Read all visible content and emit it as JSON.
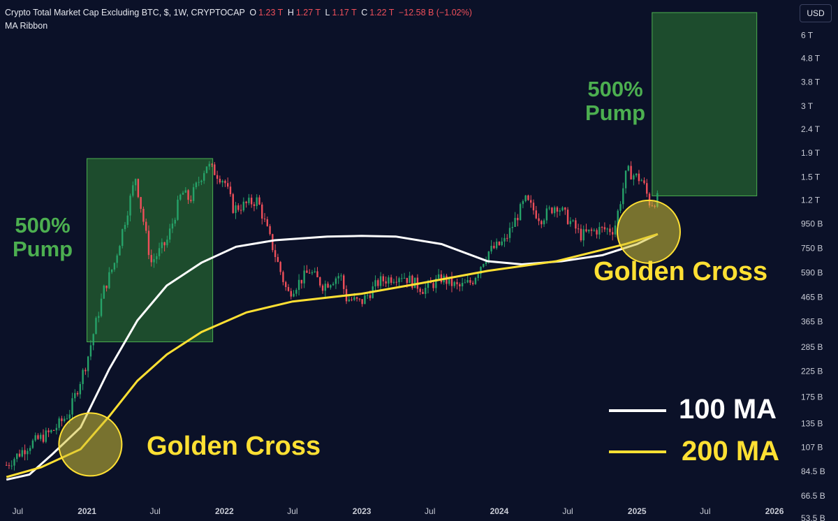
{
  "header": {
    "title": "Crypto Total Market Cap Excluding BTC, $, 1W, CRYPTOCAP",
    "open_label": "O",
    "open_value": "1.23 T",
    "high_label": "H",
    "high_value": "1.27 T",
    "low_label": "L",
    "low_value": "1.17 T",
    "close_label": "C",
    "close_value": "1.22 T",
    "change": "−12.58 B (−1.02%)",
    "indicator": "MA Ribbon"
  },
  "currency_button": "USD",
  "annotations": {
    "pump_left": "500%\nPump",
    "pump_right": "500%\nPump",
    "golden_left": "Golden Cross",
    "golden_right": "Golden Cross"
  },
  "legend": {
    "ma100": "100 MA",
    "ma200": "200 MA"
  },
  "colors": {
    "background": "#0b1128",
    "candle_up": "#26a269",
    "candle_down": "#ef4f5a",
    "ma100": "#ffffff",
    "ma200": "#ffe033",
    "pump_box": "#2e7d32",
    "golden_circle": "#d4c334"
  },
  "chart_data": {
    "type": "line",
    "title": "Crypto Total Market Cap Excluding BTC, $, 1W, CRYPTOCAP",
    "y_scale": "log",
    "y_ticks": [
      "6 T",
      "4.8 T",
      "3.8 T",
      "3 T",
      "2.4 T",
      "1.9 T",
      "1.5 T",
      "1.2 T",
      "950 B",
      "750 B",
      "590 B",
      "465 B",
      "365 B",
      "285 B",
      "225 B",
      "175 B",
      "135 B",
      "107 B",
      "84.5 B",
      "66.5 B",
      "53.5 B"
    ],
    "x_ticks": [
      "Jul",
      "2021",
      "Jul",
      "2022",
      "Jul",
      "2023",
      "Jul",
      "2024",
      "Jul",
      "2025",
      "Jul",
      "2026"
    ],
    "price_path": [
      [
        "2020-06-01",
        90
      ],
      [
        "2020-08-01",
        110
      ],
      [
        "2020-10-01",
        125
      ],
      [
        "2020-11-15",
        150
      ],
      [
        "2021-01-01",
        250
      ],
      [
        "2021-02-15",
        500
      ],
      [
        "2021-03-15",
        650
      ],
      [
        "2021-05-10",
        1500
      ],
      [
        "2021-06-20",
        650
      ],
      [
        "2021-08-01",
        800
      ],
      [
        "2021-09-10",
        1300
      ],
      [
        "2021-10-01",
        1200
      ],
      [
        "2021-11-15",
        1700
      ],
      [
        "2022-01-01",
        1450
      ],
      [
        "2022-01-25",
        1100
      ],
      [
        "2022-03-30",
        1200
      ],
      [
        "2022-05-10",
        750
      ],
      [
        "2022-06-18",
        480
      ],
      [
        "2022-08-15",
        600
      ],
      [
        "2022-09-20",
        520
      ],
      [
        "2022-11-05",
        580
      ],
      [
        "2022-11-20",
        460
      ],
      [
        "2022-12-30",
        440
      ],
      [
        "2023-02-15",
        540
      ],
      [
        "2023-04-15",
        580
      ],
      [
        "2023-06-15",
        500
      ],
      [
        "2023-08-01",
        560
      ],
      [
        "2023-09-15",
        510
      ],
      [
        "2023-10-20",
        540
      ],
      [
        "2023-12-01",
        720
      ],
      [
        "2024-01-15",
        800
      ],
      [
        "2024-03-10",
        1200
      ],
      [
        "2024-04-20",
        1000
      ],
      [
        "2024-06-01",
        1150
      ],
      [
        "2024-08-05",
        850
      ],
      [
        "2024-09-20",
        900
      ],
      [
        "2024-11-01",
        900
      ],
      [
        "2024-12-05",
        1600
      ],
      [
        "2025-01-15",
        1450
      ],
      [
        "2025-02-05",
        1150
      ],
      [
        "2025-02-25",
        1220
      ]
    ],
    "series": [
      {
        "name": "100 MA",
        "points": [
          [
            "2020-06-01",
            78
          ],
          [
            "2020-08-01",
            82
          ],
          [
            "2020-10-01",
            100
          ],
          [
            "2020-12-15",
            130
          ],
          [
            "2021-03-01",
            230
          ],
          [
            "2021-05-15",
            370
          ],
          [
            "2021-08-01",
            520
          ],
          [
            "2021-11-01",
            650
          ],
          [
            "2022-02-01",
            760
          ],
          [
            "2022-05-15",
            810
          ],
          [
            "2022-10-01",
            840
          ],
          [
            "2022-12-31",
            845
          ],
          [
            "2023-04-01",
            840
          ],
          [
            "2023-08-01",
            780
          ],
          [
            "2023-12-01",
            660
          ],
          [
            "2024-03-01",
            640
          ],
          [
            "2024-06-15",
            660
          ],
          [
            "2024-10-01",
            700
          ],
          [
            "2025-01-01",
            780
          ],
          [
            "2025-02-25",
            860
          ]
        ]
      },
      {
        "name": "200 MA",
        "points": [
          [
            "2020-06-01",
            80
          ],
          [
            "2020-09-01",
            88
          ],
          [
            "2020-12-15",
            105
          ],
          [
            "2021-03-01",
            145
          ],
          [
            "2021-05-15",
            205
          ],
          [
            "2021-08-01",
            265
          ],
          [
            "2021-11-01",
            330
          ],
          [
            "2022-03-01",
            400
          ],
          [
            "2022-07-01",
            445
          ],
          [
            "2022-12-31",
            480
          ],
          [
            "2023-06-01",
            530
          ],
          [
            "2023-12-01",
            600
          ],
          [
            "2024-06-01",
            660
          ],
          [
            "2024-12-01",
            780
          ],
          [
            "2025-02-25",
            860
          ]
        ]
      }
    ],
    "boxes": [
      {
        "label": "500% Pump",
        "x": [
          "2021-01-01",
          "2021-12-01"
        ],
        "y": [
          300,
          1800
        ]
      },
      {
        "label": "500% Pump",
        "x": [
          "2025-02-10",
          "2025-11-15"
        ],
        "y": [
          1250,
          7500
        ]
      }
    ],
    "golden_cross_points": [
      [
        "2021-01-10",
        110
      ],
      [
        "2025-02-01",
        880
      ]
    ],
    "ylim": [
      53.5,
      7500
    ],
    "xlim": [
      "2020-05-15",
      "2026-02-20"
    ],
    "grid": false,
    "legend_position": "bottom-right"
  }
}
